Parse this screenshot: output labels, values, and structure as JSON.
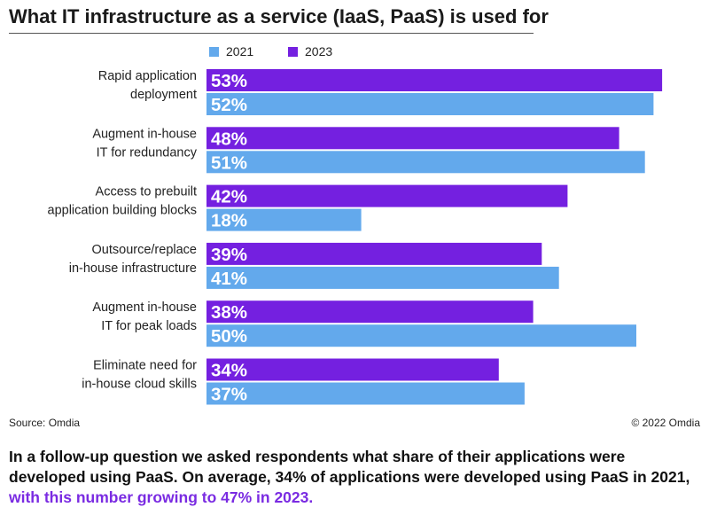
{
  "title": "What IT infrastructure as a service (IaaS, PaaS) is used for",
  "colors": {
    "series_2021": "#63a9ec",
    "series_2023": "#7420e0",
    "highlight": "#7a2be2"
  },
  "chart_data": {
    "type": "bar",
    "orientation": "horizontal",
    "value_suffix": "%",
    "legend_position": "top",
    "grid": false,
    "xlim": [
      0,
      55
    ],
    "categories": [
      [
        "Rapid application",
        "deployment"
      ],
      [
        "Augment in-house",
        "IT for redundancy"
      ],
      [
        "Access to prebuilt",
        "application building blocks"
      ],
      [
        "Outsource/replace",
        "in-house infrastructure"
      ],
      [
        "Augment in-house",
        "IT for peak loads"
      ],
      [
        "Eliminate need for",
        "in-house cloud skills"
      ]
    ],
    "series": [
      {
        "name": "2023",
        "values": [
          53,
          48,
          42,
          39,
          38,
          34
        ]
      },
      {
        "name": "2021",
        "values": [
          52,
          51,
          18,
          41,
          50,
          37
        ]
      }
    ],
    "legend": [
      "2021",
      "2023"
    ]
  },
  "source": "Source: Omdia",
  "copyright": "© 2022 Omdia",
  "footnote": {
    "text": "In a follow-up question we asked respondents what share of their applications were developed using PaaS. On average, 34% of applications were developed using PaaS in 2021, ",
    "highlight": "with this number growing to 47% in 2023."
  }
}
